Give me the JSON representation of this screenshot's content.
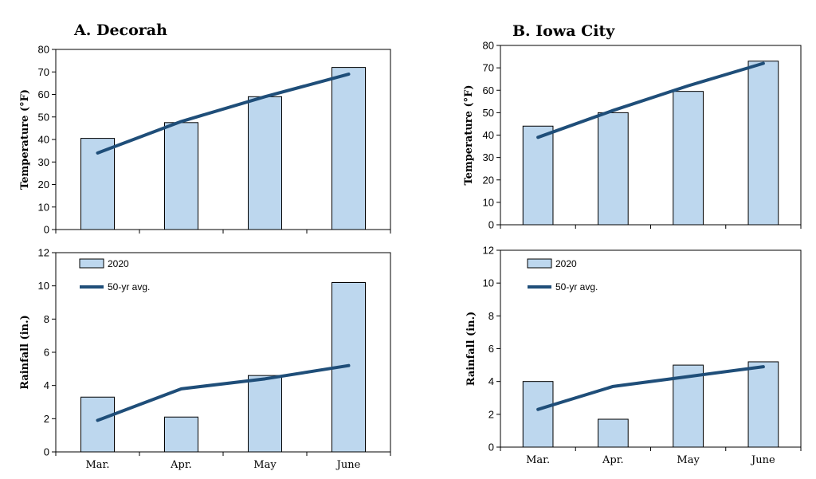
{
  "colors": {
    "bar": "#BDD7EE",
    "line": "#1F4E79",
    "axis": "#000000"
  },
  "chart_data": [
    {
      "type": "bar",
      "title": "A. Decorah",
      "ylabel": "Temperature (°F)",
      "categories": [
        "Mar.",
        "Apr.",
        "May",
        "June"
      ],
      "ylim": [
        0,
        80
      ],
      "yticks": [
        0,
        10,
        20,
        30,
        40,
        50,
        60,
        70,
        80
      ],
      "series": [
        {
          "name": "2020",
          "kind": "bar",
          "values": [
            40.5,
            47.5,
            59,
            72
          ]
        },
        {
          "name": "50-yr avg.",
          "kind": "line",
          "values": [
            34,
            48,
            59,
            69
          ]
        }
      ]
    },
    {
      "type": "bar",
      "title": "",
      "ylabel": "Rainfall (in.)",
      "categories": [
        "Mar.",
        "Apr.",
        "May",
        "June"
      ],
      "ylim": [
        0,
        12
      ],
      "yticks": [
        0,
        2,
        4,
        6,
        8,
        10,
        12
      ],
      "legend": "top-left",
      "series": [
        {
          "name": "2020",
          "kind": "bar",
          "values": [
            3.3,
            2.1,
            4.6,
            10.2
          ]
        },
        {
          "name": "50-yr avg.",
          "kind": "line",
          "values": [
            1.9,
            3.8,
            4.4,
            5.2
          ]
        }
      ]
    },
    {
      "type": "bar",
      "title": "B. Iowa City",
      "ylabel": "Temperature (°F)",
      "categories": [
        "Mar.",
        "Apr.",
        "May",
        "June"
      ],
      "ylim": [
        0,
        80
      ],
      "yticks": [
        0,
        10,
        20,
        30,
        40,
        50,
        60,
        70,
        80
      ],
      "series": [
        {
          "name": "2020",
          "kind": "bar",
          "values": [
            44,
            50,
            59.5,
            73
          ]
        },
        {
          "name": "50-yr avg.",
          "kind": "line",
          "values": [
            39,
            51,
            62,
            72
          ]
        }
      ]
    },
    {
      "type": "bar",
      "title": "",
      "ylabel": "Rainfall (in.)",
      "categories": [
        "Mar.",
        "Apr.",
        "May",
        "June"
      ],
      "ylim": [
        0,
        12
      ],
      "yticks": [
        0,
        2,
        4,
        6,
        8,
        10,
        12
      ],
      "legend": "top-left",
      "series": [
        {
          "name": "2020",
          "kind": "bar",
          "values": [
            4.0,
            1.7,
            5.0,
            5.2
          ]
        },
        {
          "name": "50-yr avg.",
          "kind": "line",
          "values": [
            2.3,
            3.7,
            4.3,
            4.9
          ]
        }
      ]
    }
  ]
}
